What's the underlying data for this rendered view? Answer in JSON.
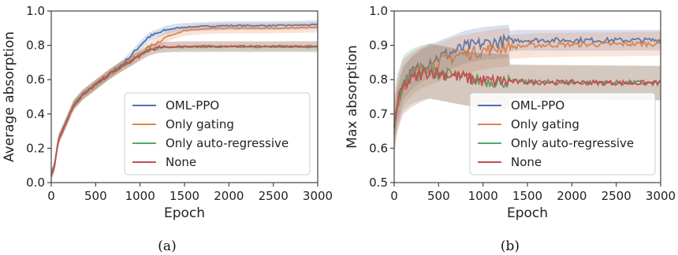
{
  "chart_data": [
    {
      "type": "line",
      "caption": "(a)",
      "xlabel": "Epoch",
      "ylabel": "Average absorption",
      "xlim": [
        0,
        3000
      ],
      "ylim": [
        0,
        1.0
      ],
      "xticks": [
        "0",
        "500",
        "1000",
        "1500",
        "2000",
        "2500",
        "3000"
      ],
      "yticks": [
        "0.0",
        "0.2",
        "0.4",
        "0.6",
        "0.8",
        "1.0"
      ],
      "grid": false,
      "legend": "bottom-right",
      "series": [
        {
          "name": "OML-PPO",
          "color": "#4c72b0",
          "band": 0.025,
          "x": [
            0,
            30,
            80,
            150,
            250,
            350,
            500,
            650,
            800,
            900,
            1000,
            1100,
            1200,
            1300,
            1400,
            1500,
            1700,
            2000,
            2500,
            3000
          ],
          "y": [
            0.05,
            0.08,
            0.25,
            0.33,
            0.45,
            0.51,
            0.57,
            0.63,
            0.69,
            0.74,
            0.8,
            0.85,
            0.87,
            0.89,
            0.9,
            0.905,
            0.91,
            0.915,
            0.915,
            0.92
          ]
        },
        {
          "name": "Only gating",
          "color": "#dd8452",
          "band": 0.03,
          "x": [
            0,
            30,
            80,
            150,
            250,
            350,
            500,
            650,
            800,
            900,
            1000,
            1100,
            1200,
            1300,
            1400,
            1500,
            1700,
            2000,
            2500,
            3000
          ],
          "y": [
            0.05,
            0.08,
            0.25,
            0.33,
            0.45,
            0.51,
            0.57,
            0.63,
            0.68,
            0.71,
            0.75,
            0.79,
            0.82,
            0.85,
            0.87,
            0.885,
            0.895,
            0.9,
            0.9,
            0.905
          ]
        },
        {
          "name": "Only auto-regressive",
          "color": "#55a868",
          "band": 0.03,
          "x": [
            0,
            30,
            80,
            150,
            250,
            350,
            500,
            650,
            800,
            900,
            1000,
            1100,
            1200,
            1300,
            1500,
            2000,
            3000
          ],
          "y": [
            0.05,
            0.08,
            0.25,
            0.33,
            0.45,
            0.51,
            0.57,
            0.63,
            0.68,
            0.71,
            0.74,
            0.77,
            0.785,
            0.79,
            0.79,
            0.79,
            0.79
          ]
        },
        {
          "name": "None",
          "color": "#c44e52",
          "band": 0.03,
          "x": [
            0,
            30,
            80,
            150,
            250,
            350,
            500,
            650,
            800,
            900,
            1000,
            1100,
            1200,
            1300,
            1500,
            2000,
            3000
          ],
          "y": [
            0.05,
            0.08,
            0.25,
            0.33,
            0.45,
            0.51,
            0.57,
            0.63,
            0.68,
            0.71,
            0.74,
            0.77,
            0.785,
            0.79,
            0.795,
            0.795,
            0.795
          ]
        }
      ]
    },
    {
      "type": "line",
      "caption": "(b)",
      "xlabel": "Epoch",
      "ylabel": "Max absorption",
      "xlim": [
        0,
        3000
      ],
      "ylim": [
        0.5,
        1.0
      ],
      "xticks": [
        "0",
        "500",
        "1000",
        "1500",
        "2000",
        "2500",
        "3000"
      ],
      "yticks": [
        "0.5",
        "0.6",
        "0.7",
        "0.8",
        "0.9",
        "1.0"
      ],
      "grid": false,
      "legend": "bottom-right",
      "series": [
        {
          "name": "OML-PPO",
          "color": "#4c72b0",
          "band": 0.03,
          "x": [
            0,
            30,
            100,
            200,
            300,
            400,
            500,
            600,
            700,
            800,
            900,
            1000,
            1200,
            1400,
            1600,
            2000,
            2500,
            3000
          ],
          "y": [
            0.66,
            0.72,
            0.79,
            0.82,
            0.84,
            0.855,
            0.865,
            0.875,
            0.885,
            0.895,
            0.9,
            0.905,
            0.91,
            0.915,
            0.915,
            0.915,
            0.915,
            0.915
          ]
        },
        {
          "name": "Only gating",
          "color": "#dd8452",
          "band": 0.035,
          "x": [
            0,
            30,
            100,
            200,
            300,
            400,
            500,
            600,
            700,
            800,
            900,
            1000,
            1200,
            1400,
            1600,
            2000,
            2500,
            3000
          ],
          "y": [
            0.66,
            0.72,
            0.78,
            0.81,
            0.83,
            0.84,
            0.85,
            0.86,
            0.87,
            0.875,
            0.88,
            0.885,
            0.893,
            0.897,
            0.9,
            0.902,
            0.903,
            0.905
          ]
        },
        {
          "name": "Only auto-regressive",
          "color": "#55a868",
          "band": 0.05,
          "x": [
            0,
            30,
            100,
            200,
            300,
            400,
            500,
            600,
            700,
            800,
            900,
            1000,
            1200,
            1500,
            2000,
            2500,
            3000
          ],
          "y": [
            0.66,
            0.73,
            0.79,
            0.81,
            0.82,
            0.825,
            0.82,
            0.815,
            0.81,
            0.805,
            0.8,
            0.797,
            0.795,
            0.793,
            0.792,
            0.791,
            0.79
          ]
        },
        {
          "name": "None",
          "color": "#c44e52",
          "band": 0.05,
          "x": [
            0,
            30,
            100,
            200,
            300,
            400,
            500,
            600,
            700,
            800,
            900,
            1000,
            1200,
            1500,
            2000,
            2500,
            3000
          ],
          "y": [
            0.66,
            0.72,
            0.78,
            0.8,
            0.815,
            0.825,
            0.82,
            0.815,
            0.81,
            0.805,
            0.8,
            0.797,
            0.795,
            0.793,
            0.792,
            0.791,
            0.79
          ]
        }
      ]
    }
  ]
}
